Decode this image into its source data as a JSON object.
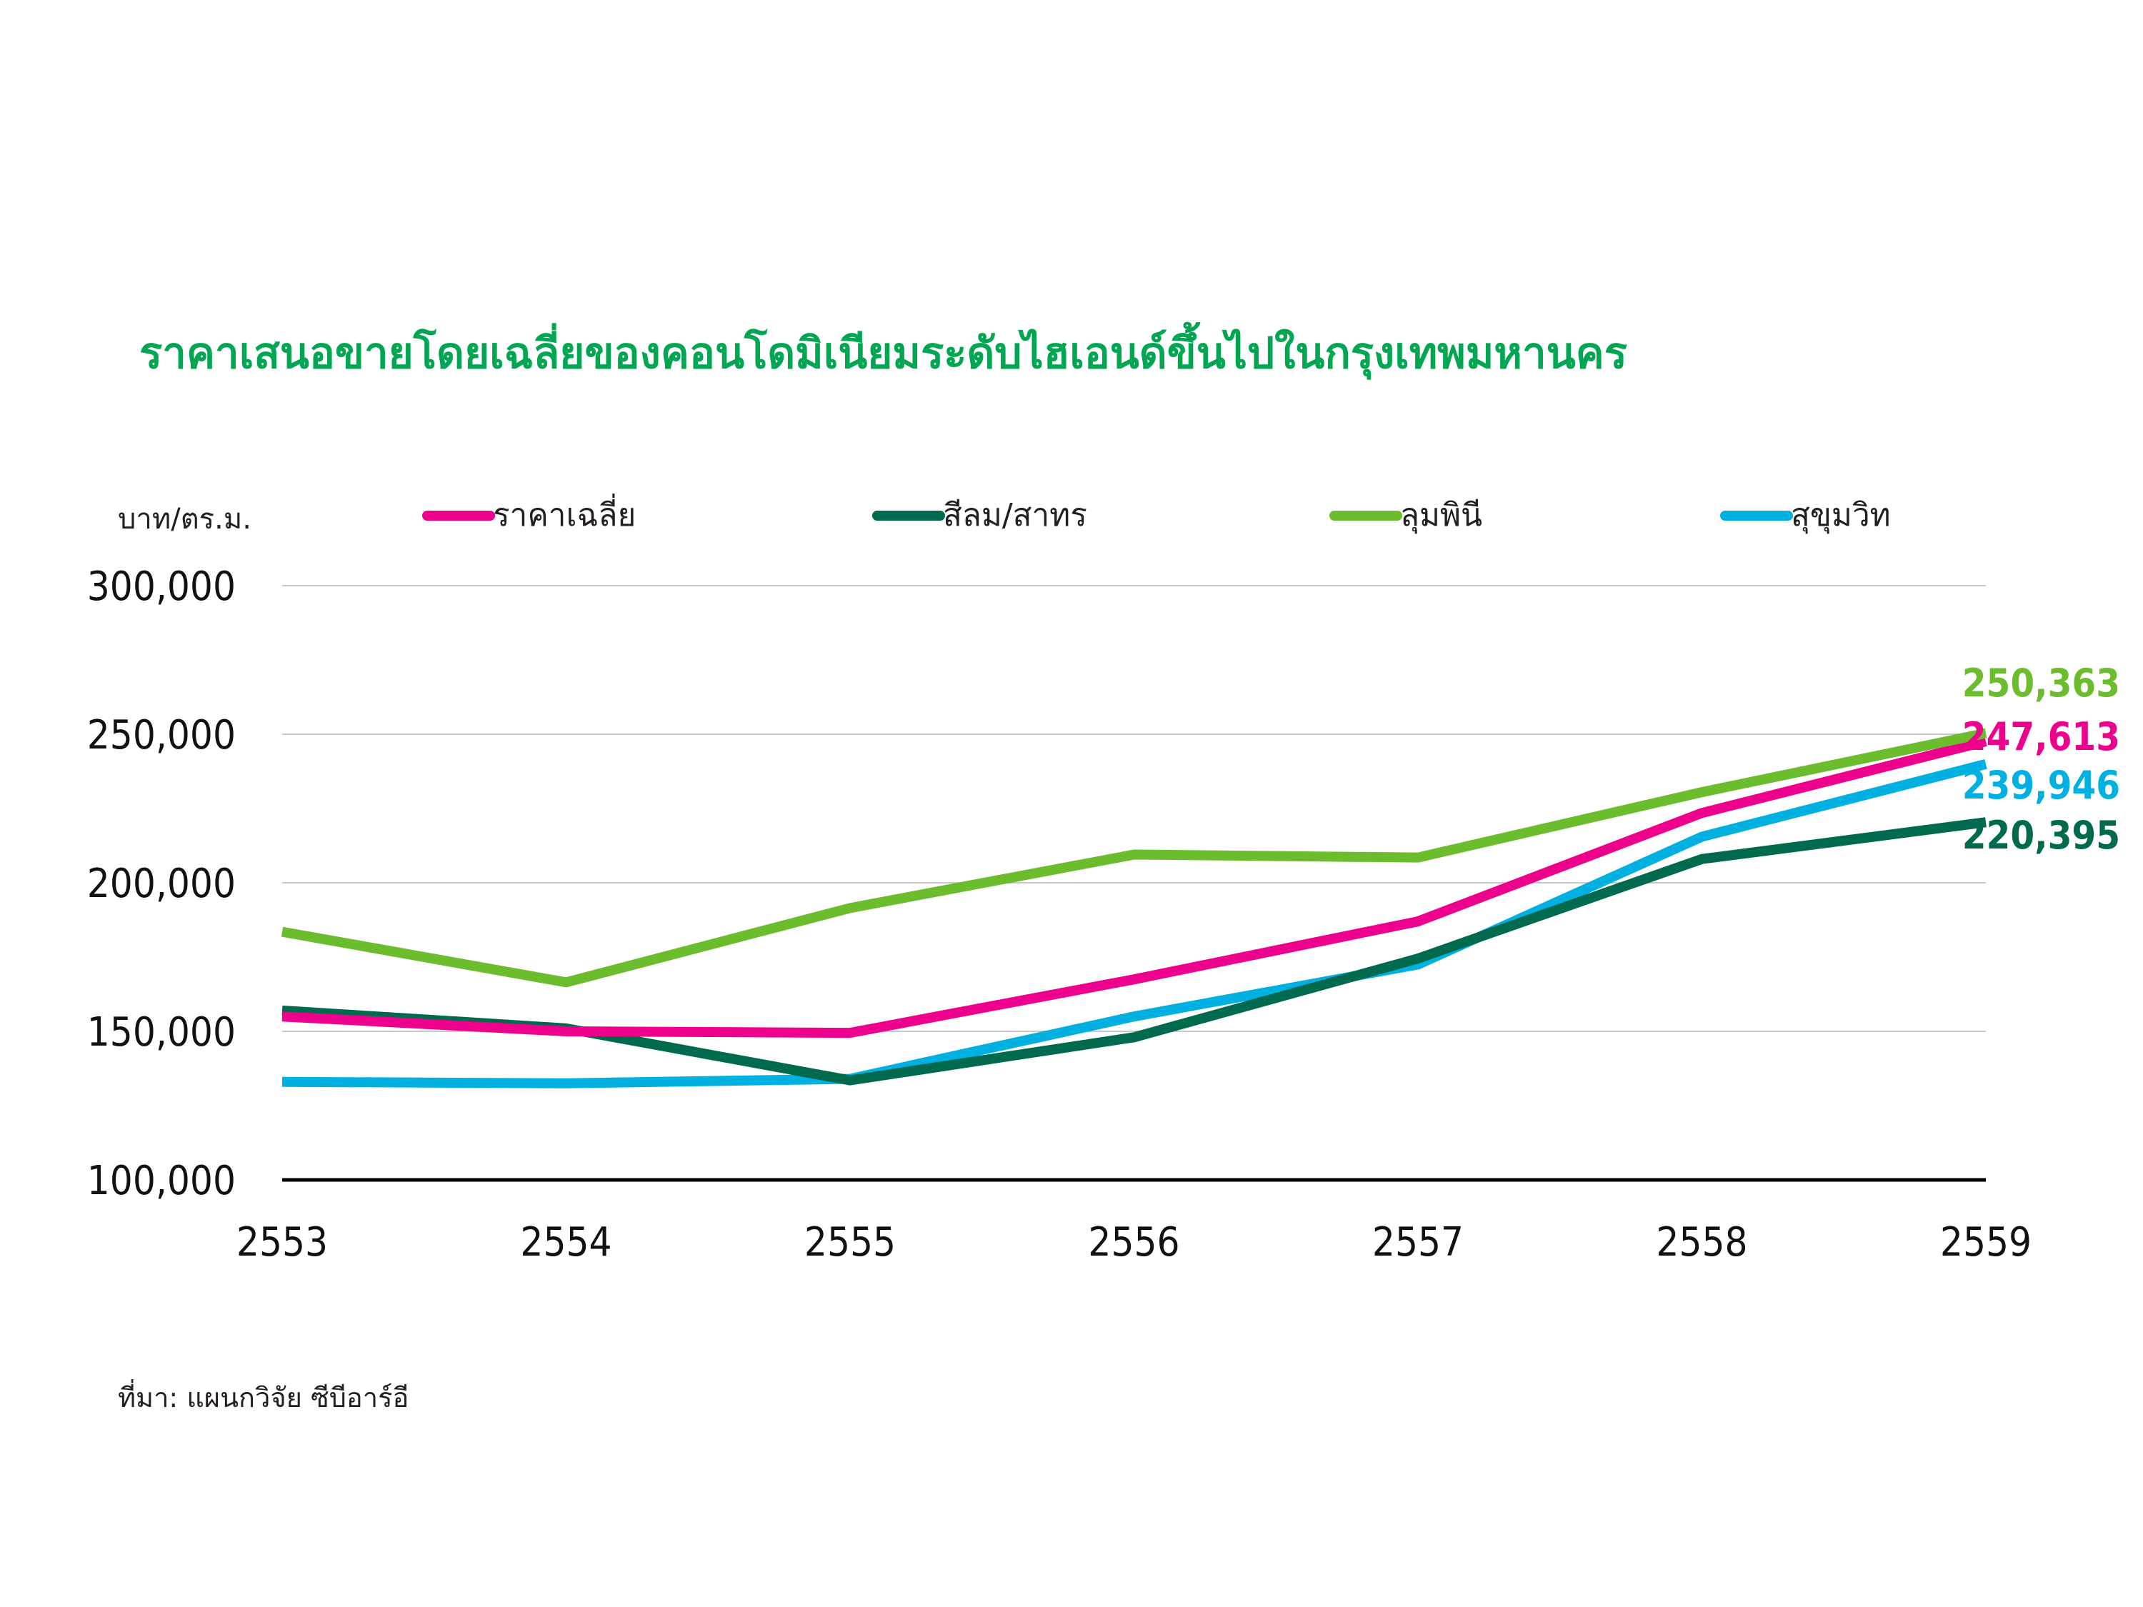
{
  "chart_data": {
    "type": "line",
    "title": "ราคาเสนอขายโดยเฉลี่ยของคอนโดมิเนียมระดับไฮเอนด์ขึ้นไปในกรุงเทพมหานคร",
    "ylabel": "บาท/ตร.ม.",
    "xlabel": "",
    "categories": [
      "2553",
      "2554",
      "2555",
      "2556",
      "2557",
      "2558",
      "2559"
    ],
    "ylim": [
      100000,
      300000
    ],
    "yticks": [
      "100,000",
      "150,000",
      "200,000",
      "250,000",
      "300,000"
    ],
    "ytick_values": [
      100000,
      150000,
      200000,
      250000,
      300000
    ],
    "grid": true,
    "legend_position": "top",
    "series": [
      {
        "name": "ราคาเฉลี่ย",
        "color": "#ec008c",
        "values": [
          155000,
          150000,
          149500,
          167500,
          187000,
          223500,
          247613
        ],
        "end_label": "247,613"
      },
      {
        "name": "สีลม/สาทร",
        "color": "#006a4e",
        "values": [
          157000,
          151000,
          133500,
          148000,
          174500,
          208000,
          220395
        ],
        "end_label": "220,395"
      },
      {
        "name": "ลุมพินี",
        "color": "#6cbd2e",
        "values": [
          183500,
          166500,
          191500,
          209500,
          208500,
          230500,
          250363
        ],
        "end_label": "250,363"
      },
      {
        "name": "สุขุมวิท",
        "color": "#00b0e0",
        "values": [
          133000,
          132500,
          134000,
          155000,
          172500,
          215500,
          239946
        ],
        "end_label": "239,946"
      }
    ],
    "title_color": "#00a651"
  },
  "source_note": "ที่มา:  แผนกวิจัย ซีบีอาร์อี"
}
